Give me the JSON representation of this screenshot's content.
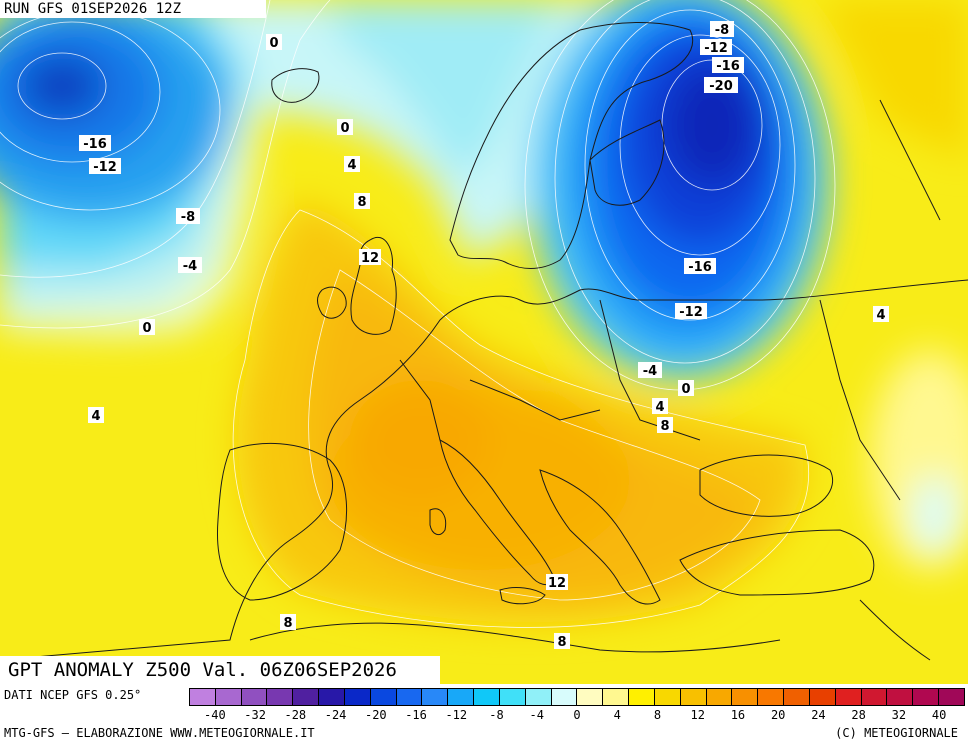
{
  "header": {
    "run_label": "RUN GFS 01SEP2026 12Z"
  },
  "title": {
    "text": "GPT ANOMALY Z500 Val. 06Z06SEP2026"
  },
  "footer": {
    "source": "DATI NCEP GFS 0.25°",
    "credit_left": "MTG-GFS – ELABORAZIONE WWW.METEOGIORNALE.IT",
    "credit_right": "(C) METEOGIORNALE"
  },
  "legend": {
    "colors": [
      "#c080e0",
      "#a868d0",
      "#9050c0",
      "#7838b0",
      "#5020a0",
      "#2818a8",
      "#0a28c8",
      "#0a48e0",
      "#1868f0",
      "#2888f8",
      "#18a8f8",
      "#10c8f8",
      "#40e0f8",
      "#90f0f8",
      "#d8fcfc",
      "#fffcc0",
      "#fff890",
      "#fff000",
      "#f8d800",
      "#f8c000",
      "#f8a800",
      "#f89000",
      "#f87800",
      "#f06000",
      "#e84000",
      "#e02020",
      "#d01830",
      "#c01040",
      "#b00850",
      "#a00858"
    ],
    "tick_labels": [
      "-40",
      "-32",
      "-28",
      "-24",
      "-20",
      "-16",
      "-12",
      "-8",
      "-4",
      "0",
      "4",
      "8",
      "12",
      "16",
      "20",
      "24",
      "28",
      "32",
      "40"
    ],
    "tick_positions": [
      0.043,
      0.133,
      0.2,
      0.267,
      0.333,
      0.4,
      0.467,
      0.533,
      0.6,
      0.667,
      0.733,
      0.8,
      0.867,
      0.933,
      1.0,
      1.067,
      1.133,
      1.2,
      1.267
    ]
  },
  "contour_labels": [
    "0",
    "0",
    "4",
    "8",
    "12",
    "-16",
    "-12",
    "-8",
    "-4",
    "0",
    "4",
    "-8",
    "-12",
    "-16",
    "-20",
    "-16",
    "-12",
    "4",
    "-4",
    "0",
    "4",
    "8",
    "12",
    "8",
    "8"
  ]
}
